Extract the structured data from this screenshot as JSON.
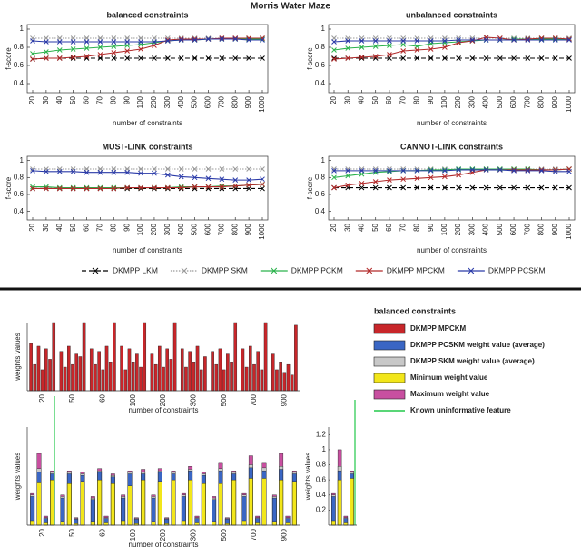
{
  "title": "Morris Water Maze",
  "legend": [
    {
      "label": "DKMPP LKM",
      "color": "#000000",
      "style": "dashed"
    },
    {
      "label": "DKMPP SKM",
      "color": "#999999",
      "style": "dotted"
    },
    {
      "label": "DKMPP PCKM",
      "color": "#2bb24c",
      "style": "solid"
    },
    {
      "label": "DKMPP MPCKM",
      "color": "#b22a2a",
      "style": "solid"
    },
    {
      "label": "DKMPP PCSKM",
      "color": "#2a3aa8",
      "style": "solid"
    }
  ],
  "bar_legend": {
    "title": "balanced constraints",
    "items": [
      {
        "label": "DKMPP MPCKM",
        "color": "#c8262a"
      },
      {
        "label": "DKMPP PCSKM weight value (average)",
        "color": "#3a66c4"
      },
      {
        "label": "DKMPP SKM weight value (average)",
        "color": "#c8c8c8"
      },
      {
        "label": "Minimum weight value",
        "color": "#f2e61a"
      },
      {
        "label": "Maximum weight value",
        "color": "#c84fa0"
      },
      {
        "label": "Known uninformative feature",
        "color": "#22c84a"
      }
    ]
  },
  "chart_data": [
    {
      "type": "line",
      "title": "balanced constraints",
      "ylabel": "f-score",
      "xlabel": "number of constraints",
      "categories": [
        "20",
        "30",
        "40",
        "50",
        "60",
        "70",
        "80",
        "90",
        "100",
        "200",
        "300",
        "400",
        "500",
        "600",
        "700",
        "800",
        "900",
        "1000"
      ],
      "ylim": [
        0.3,
        1.05
      ],
      "yticks": [
        0.4,
        0.6,
        0.8,
        1
      ],
      "series": [
        {
          "color": "#000000",
          "style": "dashed",
          "values": [
            0.67,
            0.68,
            0.68,
            0.68,
            0.68,
            0.68,
            0.68,
            0.68,
            0.68,
            0.68,
            0.68,
            0.68,
            0.68,
            0.68,
            0.68,
            0.68,
            0.68,
            0.68
          ]
        },
        {
          "color": "#999999",
          "style": "dotted",
          "values": [
            0.9,
            0.9,
            0.9,
            0.9,
            0.9,
            0.9,
            0.9,
            0.9,
            0.9,
            0.9,
            0.9,
            0.9,
            0.9,
            0.9,
            0.9,
            0.9,
            0.9,
            0.9
          ]
        },
        {
          "color": "#2bb24c",
          "style": "solid",
          "values": [
            0.73,
            0.75,
            0.77,
            0.78,
            0.79,
            0.8,
            0.81,
            0.82,
            0.83,
            0.85,
            0.87,
            0.88,
            0.88,
            0.89,
            0.89,
            0.89,
            0.89,
            0.89
          ]
        },
        {
          "color": "#b22a2a",
          "style": "solid",
          "values": [
            0.67,
            0.68,
            0.68,
            0.69,
            0.7,
            0.72,
            0.74,
            0.76,
            0.78,
            0.82,
            0.88,
            0.89,
            0.89,
            0.89,
            0.9,
            0.9,
            0.9,
            0.9
          ]
        },
        {
          "color": "#2a3aa8",
          "style": "solid",
          "values": [
            0.87,
            0.86,
            0.86,
            0.86,
            0.86,
            0.86,
            0.86,
            0.86,
            0.86,
            0.86,
            0.87,
            0.88,
            0.88,
            0.89,
            0.89,
            0.89,
            0.88,
            0.88
          ]
        }
      ]
    },
    {
      "type": "line",
      "title": "unbalanced constraints",
      "ylabel": "f-score",
      "xlabel": "number of constraints",
      "categories": [
        "20",
        "30",
        "40",
        "50",
        "60",
        "70",
        "80",
        "90",
        "100",
        "200",
        "300",
        "400",
        "500",
        "600",
        "700",
        "800",
        "900",
        "1000"
      ],
      "ylim": [
        0.3,
        1.05
      ],
      "yticks": [
        0.4,
        0.6,
        0.8,
        1
      ],
      "series": [
        {
          "color": "#000000",
          "style": "dashed",
          "values": [
            0.68,
            0.68,
            0.68,
            0.68,
            0.68,
            0.68,
            0.68,
            0.68,
            0.68,
            0.68,
            0.68,
            0.68,
            0.68,
            0.68,
            0.68,
            0.68,
            0.68,
            0.68
          ]
        },
        {
          "color": "#999999",
          "style": "dotted",
          "values": [
            0.9,
            0.9,
            0.9,
            0.9,
            0.9,
            0.9,
            0.9,
            0.9,
            0.9,
            0.9,
            0.9,
            0.9,
            0.9,
            0.9,
            0.9,
            0.9,
            0.9,
            0.9
          ]
        },
        {
          "color": "#2bb24c",
          "style": "solid",
          "values": [
            0.77,
            0.79,
            0.8,
            0.81,
            0.82,
            0.83,
            0.81,
            0.84,
            0.85,
            0.86,
            0.87,
            0.88,
            0.88,
            0.89,
            0.89,
            0.89,
            0.89,
            0.89
          ]
        },
        {
          "color": "#b22a2a",
          "style": "solid",
          "values": [
            0.67,
            0.68,
            0.69,
            0.7,
            0.72,
            0.76,
            0.77,
            0.78,
            0.8,
            0.85,
            0.87,
            0.91,
            0.9,
            0.88,
            0.89,
            0.9,
            0.9,
            0.89
          ]
        },
        {
          "color": "#2a3aa8",
          "style": "solid",
          "values": [
            0.86,
            0.87,
            0.87,
            0.87,
            0.87,
            0.87,
            0.87,
            0.87,
            0.87,
            0.88,
            0.88,
            0.88,
            0.88,
            0.88,
            0.88,
            0.88,
            0.88,
            0.88
          ]
        }
      ]
    },
    {
      "type": "line",
      "title": "MUST-LINK constraints",
      "ylabel": "f-score",
      "xlabel": "number of constraints",
      "categories": [
        "20",
        "30",
        "40",
        "50",
        "60",
        "70",
        "80",
        "90",
        "100",
        "200",
        "300",
        "400",
        "500",
        "600",
        "700",
        "800",
        "900",
        "1000"
      ],
      "ylim": [
        0.3,
        1.05
      ],
      "yticks": [
        0.4,
        0.6,
        0.8,
        1
      ],
      "series": [
        {
          "color": "#000000",
          "style": "dashed",
          "values": [
            0.67,
            0.67,
            0.67,
            0.67,
            0.67,
            0.67,
            0.67,
            0.67,
            0.67,
            0.67,
            0.67,
            0.67,
            0.67,
            0.67,
            0.67,
            0.67,
            0.67,
            0.67
          ]
        },
        {
          "color": "#999999",
          "style": "dotted",
          "values": [
            0.9,
            0.9,
            0.9,
            0.9,
            0.9,
            0.9,
            0.9,
            0.9,
            0.9,
            0.9,
            0.9,
            0.9,
            0.9,
            0.9,
            0.9,
            0.9,
            0.9,
            0.9
          ]
        },
        {
          "color": "#2bb24c",
          "style": "solid",
          "values": [
            0.69,
            0.69,
            0.68,
            0.68,
            0.68,
            0.68,
            0.68,
            0.68,
            0.68,
            0.68,
            0.68,
            0.69,
            0.69,
            0.69,
            0.7,
            0.7,
            0.71,
            0.72
          ]
        },
        {
          "color": "#b22a2a",
          "style": "solid",
          "values": [
            0.67,
            0.67,
            0.67,
            0.67,
            0.67,
            0.67,
            0.67,
            0.68,
            0.68,
            0.68,
            0.68,
            0.68,
            0.69,
            0.69,
            0.69,
            0.7,
            0.71,
            0.72
          ]
        },
        {
          "color": "#2a3aa8",
          "style": "solid",
          "values": [
            0.88,
            0.87,
            0.87,
            0.87,
            0.86,
            0.86,
            0.86,
            0.86,
            0.85,
            0.85,
            0.83,
            0.81,
            0.8,
            0.79,
            0.78,
            0.77,
            0.77,
            0.78
          ]
        }
      ]
    },
    {
      "type": "line",
      "title": "CANNOT-LINK constraints",
      "ylabel": "f-score",
      "xlabel": "number of constraints",
      "categories": [
        "20",
        "30",
        "40",
        "50",
        "60",
        "70",
        "80",
        "90",
        "100",
        "200",
        "300",
        "400",
        "500",
        "600",
        "700",
        "800",
        "900",
        "1000"
      ],
      "ylim": [
        0.3,
        1.05
      ],
      "yticks": [
        0.4,
        0.6,
        0.8,
        1
      ],
      "series": [
        {
          "color": "#000000",
          "style": "dashed",
          "values": [
            0.68,
            0.68,
            0.68,
            0.68,
            0.68,
            0.68,
            0.68,
            0.68,
            0.68,
            0.68,
            0.68,
            0.68,
            0.68,
            0.68,
            0.68,
            0.68,
            0.68,
            0.68
          ]
        },
        {
          "color": "#999999",
          "style": "dotted",
          "values": [
            0.9,
            0.9,
            0.9,
            0.9,
            0.9,
            0.9,
            0.9,
            0.9,
            0.9,
            0.9,
            0.9,
            0.9,
            0.9,
            0.9,
            0.9,
            0.9,
            0.9,
            0.9
          ]
        },
        {
          "color": "#2bb24c",
          "style": "solid",
          "values": [
            0.8,
            0.82,
            0.84,
            0.86,
            0.87,
            0.88,
            0.88,
            0.89,
            0.89,
            0.9,
            0.9,
            0.9,
            0.9,
            0.9,
            0.9,
            0.89,
            0.89,
            0.9
          ]
        },
        {
          "color": "#b22a2a",
          "style": "solid",
          "values": [
            0.68,
            0.71,
            0.73,
            0.75,
            0.77,
            0.78,
            0.79,
            0.8,
            0.81,
            0.83,
            0.86,
            0.89,
            0.89,
            0.89,
            0.89,
            0.89,
            0.89,
            0.9
          ]
        },
        {
          "color": "#2a3aa8",
          "style": "solid",
          "values": [
            0.88,
            0.88,
            0.88,
            0.88,
            0.88,
            0.88,
            0.88,
            0.88,
            0.88,
            0.89,
            0.89,
            0.89,
            0.89,
            0.88,
            0.88,
            0.88,
            0.87,
            0.87
          ]
        }
      ]
    },
    {
      "type": "grouped-bar",
      "ylabel": "weights values",
      "xlabel": "number of constraints",
      "categories": [
        "20",
        "50",
        "60",
        "100",
        "200",
        "300",
        "500",
        "700",
        "900"
      ],
      "ylim": [
        0,
        1.3
      ],
      "series": [
        {
          "color": "#c8262a",
          "values": [
            [
              0.9,
              0.5,
              0.85,
              0.4,
              0.8,
              0.6,
              1.3
            ],
            [
              0.75,
              0.45,
              0.85,
              0.5,
              0.7,
              0.65,
              1.3
            ],
            [
              0.8,
              0.5,
              0.75,
              0.4,
              0.85,
              0.55,
              1.3
            ],
            [
              0.85,
              0.4,
              0.8,
              0.55,
              0.7,
              0.45,
              1.3
            ],
            [
              0.7,
              0.5,
              0.85,
              0.45,
              0.8,
              0.6,
              1.3
            ],
            [
              0.8,
              0.45,
              0.75,
              0.55,
              0.85,
              0.4,
              0.65
            ],
            [
              0.75,
              0.5,
              0.8,
              0.4,
              0.7,
              0.55,
              1.3
            ],
            [
              0.8,
              0.45,
              0.85,
              0.5,
              0.75,
              0.4,
              1.3
            ],
            [
              0.7,
              0.4,
              0.55,
              0.35,
              0.5,
              0.3,
              1.25
            ]
          ]
        }
      ]
    },
    {
      "type": "overlap-bar",
      "ylabel": "weights values",
      "xlabel": "number of constraints",
      "categories": [
        "20",
        "50",
        "60",
        "100",
        "200",
        "300",
        "500",
        "700",
        "900"
      ],
      "ylim": [
        0,
        1.3
      ],
      "series": [
        {
          "color": "#c84fa0",
          "values": [
            [
              0.42,
              0.95,
              0.12,
              0.72
            ],
            [
              0.4,
              0.72,
              0.1,
              0.7
            ],
            [
              0.38,
              0.75,
              0.12,
              0.68
            ],
            [
              0.4,
              0.72,
              0.1,
              0.74
            ],
            [
              0.4,
              0.75,
              0.1,
              0.72
            ],
            [
              0.42,
              0.78,
              0.12,
              0.7
            ],
            [
              0.38,
              0.82,
              0.1,
              0.72
            ],
            [
              0.42,
              0.92,
              0.12,
              0.82
            ],
            [
              0.4,
              0.95,
              0.12,
              0.72
            ]
          ]
        },
        {
          "color": "#c8c8c8",
          "values": [
            [
              0.4,
              0.75,
              0.1,
              0.7
            ],
            [
              0.38,
              0.7,
              0.09,
              0.68
            ],
            [
              0.36,
              0.72,
              0.1,
              0.66
            ],
            [
              0.38,
              0.7,
              0.09,
              0.7
            ],
            [
              0.38,
              0.72,
              0.09,
              0.7
            ],
            [
              0.4,
              0.74,
              0.1,
              0.68
            ],
            [
              0.36,
              0.75,
              0.09,
              0.7
            ],
            [
              0.4,
              0.8,
              0.1,
              0.76
            ],
            [
              0.38,
              0.78,
              0.1,
              0.7
            ]
          ]
        },
        {
          "color": "#3a66c4",
          "values": [
            [
              0.38,
              0.7,
              0.09,
              0.68
            ],
            [
              0.36,
              0.68,
              0.08,
              0.66
            ],
            [
              0.34,
              0.7,
              0.09,
              0.64
            ],
            [
              0.36,
              0.68,
              0.08,
              0.68
            ],
            [
              0.36,
              0.7,
              0.08,
              0.68
            ],
            [
              0.38,
              0.72,
              0.09,
              0.66
            ],
            [
              0.34,
              0.72,
              0.08,
              0.68
            ],
            [
              0.38,
              0.76,
              0.09,
              0.72
            ],
            [
              0.36,
              0.74,
              0.09,
              0.68
            ]
          ]
        },
        {
          "color": "#f2e61a",
          "values": [
            [
              0.06,
              0.56,
              0.03,
              0.6
            ],
            [
              0.05,
              0.55,
              0.02,
              0.58
            ],
            [
              0.05,
              0.6,
              0.03,
              0.55
            ],
            [
              0.06,
              0.52,
              0.02,
              0.6
            ],
            [
              0.05,
              0.58,
              0.02,
              0.6
            ],
            [
              0.06,
              0.6,
              0.03,
              0.55
            ],
            [
              0.05,
              0.55,
              0.02,
              0.6
            ],
            [
              0.06,
              0.62,
              0.03,
              0.62
            ],
            [
              0.05,
              0.6,
              0.03,
              0.58
            ]
          ]
        }
      ]
    },
    {
      "type": "overlap-bar",
      "ylabel": "weights values",
      "ylim": [
        0,
        1.3
      ],
      "yticks": [
        0.2,
        0.4,
        0.6,
        0.8,
        1,
        1.2
      ],
      "series": [
        {
          "color": "#c84fa0",
          "values": [
            [
              0.42,
              1,
              0.12,
              0.72
            ]
          ]
        },
        {
          "color": "#c8c8c8",
          "values": [
            [
              0.4,
              0.78,
              0.1,
              0.7
            ]
          ]
        },
        {
          "color": "#3a66c4",
          "values": [
            [
              0.38,
              0.72,
              0.09,
              0.68
            ]
          ]
        },
        {
          "color": "#f2e61a",
          "values": [
            [
              0.06,
              0.6,
              0.03,
              0.62
            ]
          ]
        }
      ]
    }
  ]
}
